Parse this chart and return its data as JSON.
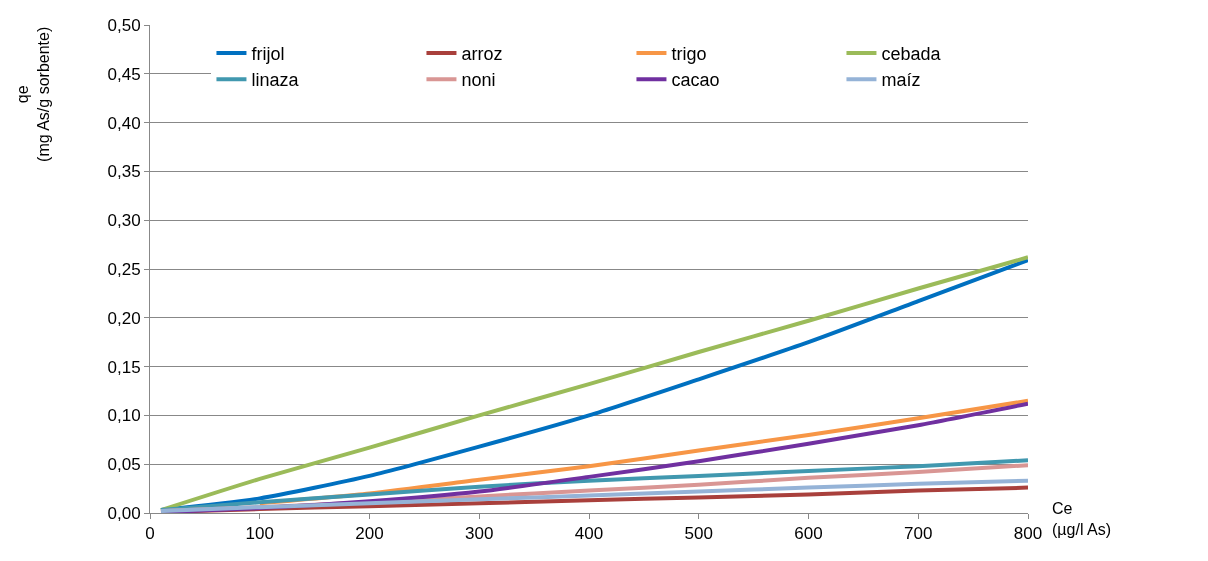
{
  "chart_data": {
    "type": "line",
    "xlabel": "Ce\n(µg/l As)",
    "ylabel": "qe\n(mg As/g sorbente)",
    "x": [
      10,
      100,
      200,
      300,
      400,
      500,
      600,
      700,
      800
    ],
    "series": [
      {
        "name": "frijol",
        "color": "#0070c0",
        "values": [
          0.003,
          0.015,
          0.038,
          0.068,
          0.1,
          0.137,
          0.175,
          0.217,
          0.259
        ]
      },
      {
        "name": "arroz",
        "color": "#a9403c",
        "values": [
          0.001,
          0.004,
          0.007,
          0.01,
          0.013,
          0.016,
          0.019,
          0.023,
          0.026
        ]
      },
      {
        "name": "trigo",
        "color": "#f79646",
        "values": [
          null,
          0.01,
          0.02,
          0.034,
          0.048,
          0.064,
          0.08,
          0.097,
          0.115
        ]
      },
      {
        "name": "cebada",
        "color": "#9bbb59",
        "values": [
          0.003,
          0.035,
          0.067,
          0.1,
          0.132,
          0.165,
          0.197,
          0.23,
          0.262
        ]
      },
      {
        "name": "linaza",
        "color": "#4198af",
        "values": [
          0.003,
          0.011,
          0.019,
          0.027,
          0.033,
          0.038,
          0.043,
          0.048,
          0.054
        ]
      },
      {
        "name": "noni",
        "color": "#d99694",
        "values": [
          0.002,
          0.006,
          0.011,
          0.017,
          0.023,
          0.029,
          0.036,
          0.042,
          0.049
        ]
      },
      {
        "name": "cacao",
        "color": "#7030a0",
        "values": [
          0.001,
          0.005,
          0.012,
          0.022,
          0.037,
          0.053,
          0.071,
          0.09,
          0.112
        ]
      },
      {
        "name": "maíz",
        "color": "#95b3d7",
        "values": [
          0.002,
          0.006,
          0.01,
          0.014,
          0.018,
          0.022,
          0.026,
          0.03,
          0.033
        ]
      }
    ],
    "xlim": [
      0,
      800
    ],
    "xticks": [
      0,
      100,
      200,
      300,
      400,
      500,
      600,
      700,
      800
    ],
    "ylim": [
      0,
      0.5
    ],
    "yticks": [
      {
        "value": 0,
        "label": "0,00"
      },
      {
        "value": 0.05,
        "label": "0,05"
      },
      {
        "value": 0.1,
        "label": "0,10"
      },
      {
        "value": 0.15,
        "label": "0,15"
      },
      {
        "value": 0.2,
        "label": "0,20"
      },
      {
        "value": 0.25,
        "label": "0,25"
      },
      {
        "value": 0.3,
        "label": "0,30"
      },
      {
        "value": 0.35,
        "label": "0,35"
      },
      {
        "value": 0.4,
        "label": "0,40"
      },
      {
        "value": 0.45,
        "label": "0,45"
      },
      {
        "value": 0.5,
        "label": "0,50"
      }
    ],
    "grid": "y",
    "legend": "top",
    "marker": "none",
    "line_style": "solid"
  }
}
